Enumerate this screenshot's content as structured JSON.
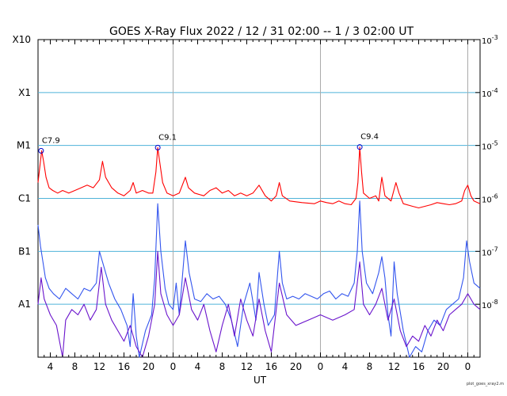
{
  "chart_data": {
    "type": "line",
    "title": "GOES X-Ray Flux   2022 / 12 / 31   02:00 --  1 /  3   02:00   UT",
    "xlabel": "UT",
    "ylabel": "",
    "x_ticks_hours": [
      2,
      6,
      10,
      14,
      18,
      22,
      26,
      30,
      34,
      38,
      42,
      46,
      50,
      54,
      58,
      62,
      66,
      70,
      72
    ],
    "x_tick_labels": [
      "4",
      "8",
      "12",
      "16",
      "20",
      "0",
      "4",
      "8",
      "12",
      "16",
      "20",
      "0",
      "4",
      "8",
      "12",
      "16",
      "20",
      "0"
    ],
    "xlim_hours": [
      0,
      72
    ],
    "ylim_log": [
      -9,
      -3
    ],
    "y_scale": "log",
    "left_axis_labels": [
      {
        "label": "X10",
        "exp": -3
      },
      {
        "label": "X1",
        "exp": -4
      },
      {
        "label": "M1",
        "exp": -5
      },
      {
        "label": "C1",
        "exp": -6
      },
      {
        "label": "B1",
        "exp": -7
      },
      {
        "label": "A1",
        "exp": -8
      }
    ],
    "right_axis_labels": [
      {
        "base": "10",
        "sup": "-3",
        "exp": -3
      },
      {
        "base": "10",
        "sup": "-4",
        "exp": -4
      },
      {
        "base": "10",
        "sup": "-5",
        "exp": -5
      },
      {
        "base": "10",
        "sup": "-6",
        "exp": -6
      },
      {
        "base": "10",
        "sup": "-7",
        "exp": -7
      },
      {
        "base": "10",
        "sup": "-8",
        "exp": -8
      }
    ],
    "day_boundaries_hours": [
      22,
      46,
      70
    ],
    "flares": [
      {
        "label": "C7.9",
        "hour": 0.5,
        "log_flux": -5.1
      },
      {
        "label": "C9.1",
        "hour": 19.5,
        "log_flux": -5.04
      },
      {
        "label": "C9.4",
        "hour": 52.4,
        "log_flux": -5.03
      }
    ],
    "series": [
      {
        "color": "#ff0000",
        "points": [
          [
            0,
            -5.7
          ],
          [
            0.3,
            -5.4
          ],
          [
            0.6,
            -5.1
          ],
          [
            0.9,
            -5.3
          ],
          [
            1.3,
            -5.6
          ],
          [
            1.8,
            -5.8
          ],
          [
            2.4,
            -5.85
          ],
          [
            3.2,
            -5.9
          ],
          [
            4.0,
            -5.85
          ],
          [
            5.0,
            -5.9
          ],
          [
            6.0,
            -5.85
          ],
          [
            7.0,
            -5.8
          ],
          [
            8.0,
            -5.75
          ],
          [
            9.0,
            -5.8
          ],
          [
            10.0,
            -5.65
          ],
          [
            10.5,
            -5.3
          ],
          [
            11.0,
            -5.6
          ],
          [
            12.0,
            -5.8
          ],
          [
            13.0,
            -5.9
          ],
          [
            14.0,
            -5.95
          ],
          [
            15.0,
            -5.85
          ],
          [
            15.5,
            -5.7
          ],
          [
            16.0,
            -5.9
          ],
          [
            17.0,
            -5.85
          ],
          [
            18.0,
            -5.9
          ],
          [
            18.7,
            -5.9
          ],
          [
            19.2,
            -5.5
          ],
          [
            19.5,
            -5.04
          ],
          [
            19.8,
            -5.3
          ],
          [
            20.3,
            -5.7
          ],
          [
            21.0,
            -5.9
          ],
          [
            22.0,
            -5.95
          ],
          [
            23.0,
            -5.9
          ],
          [
            24.0,
            -5.6
          ],
          [
            24.5,
            -5.8
          ],
          [
            25.5,
            -5.9
          ],
          [
            27.0,
            -5.95
          ],
          [
            28.0,
            -5.85
          ],
          [
            29.0,
            -5.8
          ],
          [
            30.0,
            -5.9
          ],
          [
            31.0,
            -5.85
          ],
          [
            32.0,
            -5.95
          ],
          [
            33.0,
            -5.9
          ],
          [
            34.0,
            -5.95
          ],
          [
            35.0,
            -5.9
          ],
          [
            36.0,
            -5.75
          ],
          [
            37.0,
            -5.95
          ],
          [
            38.0,
            -6.05
          ],
          [
            38.8,
            -5.95
          ],
          [
            39.3,
            -5.7
          ],
          [
            39.8,
            -5.95
          ],
          [
            41.0,
            -6.05
          ],
          [
            43.0,
            -6.08
          ],
          [
            45.0,
            -6.1
          ],
          [
            46.0,
            -6.05
          ],
          [
            47.0,
            -6.08
          ],
          [
            48.0,
            -6.1
          ],
          [
            49.0,
            -6.05
          ],
          [
            50.0,
            -6.1
          ],
          [
            51.0,
            -6.12
          ],
          [
            51.8,
            -6.0
          ],
          [
            52.1,
            -5.7
          ],
          [
            52.4,
            -5.03
          ],
          [
            52.7,
            -5.5
          ],
          [
            53.0,
            -5.9
          ],
          [
            54.0,
            -6.0
          ],
          [
            55.0,
            -5.95
          ],
          [
            55.5,
            -6.05
          ],
          [
            56.0,
            -5.6
          ],
          [
            56.5,
            -5.95
          ],
          [
            57.5,
            -6.05
          ],
          [
            58.3,
            -5.7
          ],
          [
            58.8,
            -5.9
          ],
          [
            59.5,
            -6.1
          ],
          [
            61.0,
            -6.15
          ],
          [
            62.0,
            -6.18
          ],
          [
            63.0,
            -6.15
          ],
          [
            64.0,
            -6.12
          ],
          [
            65.0,
            -6.08
          ],
          [
            66.0,
            -6.1
          ],
          [
            67.0,
            -6.12
          ],
          [
            68.0,
            -6.1
          ],
          [
            69.0,
            -6.05
          ],
          [
            69.5,
            -5.85
          ],
          [
            70.0,
            -5.75
          ],
          [
            70.5,
            -5.95
          ],
          [
            71.0,
            -6.05
          ],
          [
            72.0,
            -6.1
          ]
        ]
      },
      {
        "color": "#3355ee",
        "points": [
          [
            0,
            -6.5
          ],
          [
            0.4,
            -6.9
          ],
          [
            0.8,
            -7.2
          ],
          [
            1.2,
            -7.5
          ],
          [
            1.8,
            -7.7
          ],
          [
            2.5,
            -7.8
          ],
          [
            3.5,
            -7.9
          ],
          [
            4.5,
            -7.7
          ],
          [
            5.5,
            -7.8
          ],
          [
            6.5,
            -7.9
          ],
          [
            7.5,
            -7.7
          ],
          [
            8.5,
            -7.75
          ],
          [
            9.5,
            -7.6
          ],
          [
            10.0,
            -7.0
          ],
          [
            10.5,
            -7.2
          ],
          [
            11.5,
            -7.6
          ],
          [
            12.5,
            -7.9
          ],
          [
            13.5,
            -8.1
          ],
          [
            14.5,
            -8.4
          ],
          [
            15.0,
            -8.8
          ],
          [
            15.5,
            -7.8
          ],
          [
            16.0,
            -8.6
          ],
          [
            16.5,
            -9.0
          ],
          [
            17.5,
            -8.5
          ],
          [
            18.5,
            -8.2
          ],
          [
            19.0,
            -7.5
          ],
          [
            19.5,
            -6.1
          ],
          [
            20.0,
            -7.0
          ],
          [
            20.7,
            -7.7
          ],
          [
            21.3,
            -8.0
          ],
          [
            22.0,
            -8.1
          ],
          [
            22.5,
            -7.6
          ],
          [
            23.0,
            -8.2
          ],
          [
            24.0,
            -6.8
          ],
          [
            24.6,
            -7.4
          ],
          [
            25.5,
            -7.9
          ],
          [
            26.5,
            -7.95
          ],
          [
            27.5,
            -7.8
          ],
          [
            28.5,
            -7.9
          ],
          [
            29.5,
            -7.85
          ],
          [
            30.5,
            -8.0
          ],
          [
            31.5,
            -8.3
          ],
          [
            32.5,
            -8.8
          ],
          [
            33.5,
            -8.0
          ],
          [
            34.5,
            -7.6
          ],
          [
            35.5,
            -8.3
          ],
          [
            36.0,
            -7.4
          ],
          [
            36.8,
            -8.0
          ],
          [
            37.5,
            -8.4
          ],
          [
            38.5,
            -8.2
          ],
          [
            39.3,
            -7.0
          ],
          [
            39.8,
            -7.6
          ],
          [
            40.5,
            -7.9
          ],
          [
            41.5,
            -7.85
          ],
          [
            42.5,
            -7.9
          ],
          [
            43.5,
            -7.8
          ],
          [
            44.5,
            -7.85
          ],
          [
            45.5,
            -7.9
          ],
          [
            46.5,
            -7.8
          ],
          [
            47.5,
            -7.75
          ],
          [
            48.5,
            -7.9
          ],
          [
            49.5,
            -7.8
          ],
          [
            50.5,
            -7.85
          ],
          [
            51.5,
            -7.6
          ],
          [
            52.0,
            -7.0
          ],
          [
            52.4,
            -6.05
          ],
          [
            52.8,
            -7.0
          ],
          [
            53.5,
            -7.6
          ],
          [
            54.5,
            -7.8
          ],
          [
            55.5,
            -7.4
          ],
          [
            56.0,
            -7.1
          ],
          [
            56.5,
            -7.5
          ],
          [
            57.0,
            -8.2
          ],
          [
            57.5,
            -8.6
          ],
          [
            58.0,
            -7.2
          ],
          [
            58.5,
            -7.8
          ],
          [
            59.5,
            -8.5
          ],
          [
            60.5,
            -9.0
          ],
          [
            61.5,
            -8.8
          ],
          [
            62.5,
            -8.9
          ],
          [
            63.5,
            -8.5
          ],
          [
            64.5,
            -8.3
          ],
          [
            65.5,
            -8.4
          ],
          [
            66.5,
            -8.1
          ],
          [
            67.5,
            -8.0
          ],
          [
            68.5,
            -7.9
          ],
          [
            69.3,
            -7.5
          ],
          [
            69.8,
            -6.8
          ],
          [
            70.3,
            -7.2
          ],
          [
            71.0,
            -7.6
          ],
          [
            72.0,
            -7.7
          ]
        ]
      },
      {
        "color": "#6a14cc",
        "points": [
          [
            0,
            -8.0
          ],
          [
            0.5,
            -7.5
          ],
          [
            1.0,
            -7.9
          ],
          [
            2.0,
            -8.2
          ],
          [
            3.0,
            -8.4
          ],
          [
            4.0,
            -9.0
          ],
          [
            4.5,
            -8.3
          ],
          [
            5.5,
            -8.1
          ],
          [
            6.5,
            -8.2
          ],
          [
            7.5,
            -8.0
          ],
          [
            8.5,
            -8.3
          ],
          [
            9.5,
            -8.1
          ],
          [
            10.3,
            -7.3
          ],
          [
            11.0,
            -8.0
          ],
          [
            12.0,
            -8.3
          ],
          [
            13.0,
            -8.5
          ],
          [
            14.0,
            -8.7
          ],
          [
            15.0,
            -8.4
          ],
          [
            16.0,
            -8.8
          ],
          [
            17.0,
            -9.0
          ],
          [
            18.0,
            -8.6
          ],
          [
            19.0,
            -8.0
          ],
          [
            19.5,
            -7.0
          ],
          [
            20.0,
            -7.8
          ],
          [
            21.0,
            -8.2
          ],
          [
            22.0,
            -8.4
          ],
          [
            23.0,
            -8.2
          ],
          [
            24.0,
            -7.5
          ],
          [
            25.0,
            -8.1
          ],
          [
            26.0,
            -8.3
          ],
          [
            27.0,
            -8.0
          ],
          [
            28.0,
            -8.5
          ],
          [
            29.0,
            -8.9
          ],
          [
            30.0,
            -8.4
          ],
          [
            31.0,
            -8.0
          ],
          [
            32.0,
            -8.6
          ],
          [
            33.0,
            -7.9
          ],
          [
            34.0,
            -8.3
          ],
          [
            35.0,
            -8.6
          ],
          [
            36.0,
            -7.9
          ],
          [
            37.0,
            -8.5
          ],
          [
            38.0,
            -8.9
          ],
          [
            39.3,
            -7.6
          ],
          [
            40.5,
            -8.2
          ],
          [
            42.0,
            -8.4
          ],
          [
            44.0,
            -8.3
          ],
          [
            46.0,
            -8.2
          ],
          [
            48.0,
            -8.3
          ],
          [
            50.0,
            -8.2
          ],
          [
            51.5,
            -8.1
          ],
          [
            52.4,
            -7.2
          ],
          [
            53.0,
            -8.0
          ],
          [
            54.0,
            -8.2
          ],
          [
            55.0,
            -8.0
          ],
          [
            56.0,
            -7.7
          ],
          [
            57.0,
            -8.3
          ],
          [
            58.0,
            -7.9
          ],
          [
            59.0,
            -8.5
          ],
          [
            60.0,
            -8.8
          ],
          [
            61.0,
            -8.6
          ],
          [
            62.0,
            -8.7
          ],
          [
            63.0,
            -8.4
          ],
          [
            64.0,
            -8.6
          ],
          [
            65.0,
            -8.3
          ],
          [
            66.0,
            -8.5
          ],
          [
            67.0,
            -8.2
          ],
          [
            68.0,
            -8.1
          ],
          [
            69.0,
            -8.0
          ],
          [
            70.0,
            -7.8
          ],
          [
            71.0,
            -8.0
          ],
          [
            72.0,
            -8.1
          ]
        ]
      }
    ],
    "grid": "horizontal",
    "legend": "none",
    "footnote": "plot_goes_xray2.m"
  }
}
